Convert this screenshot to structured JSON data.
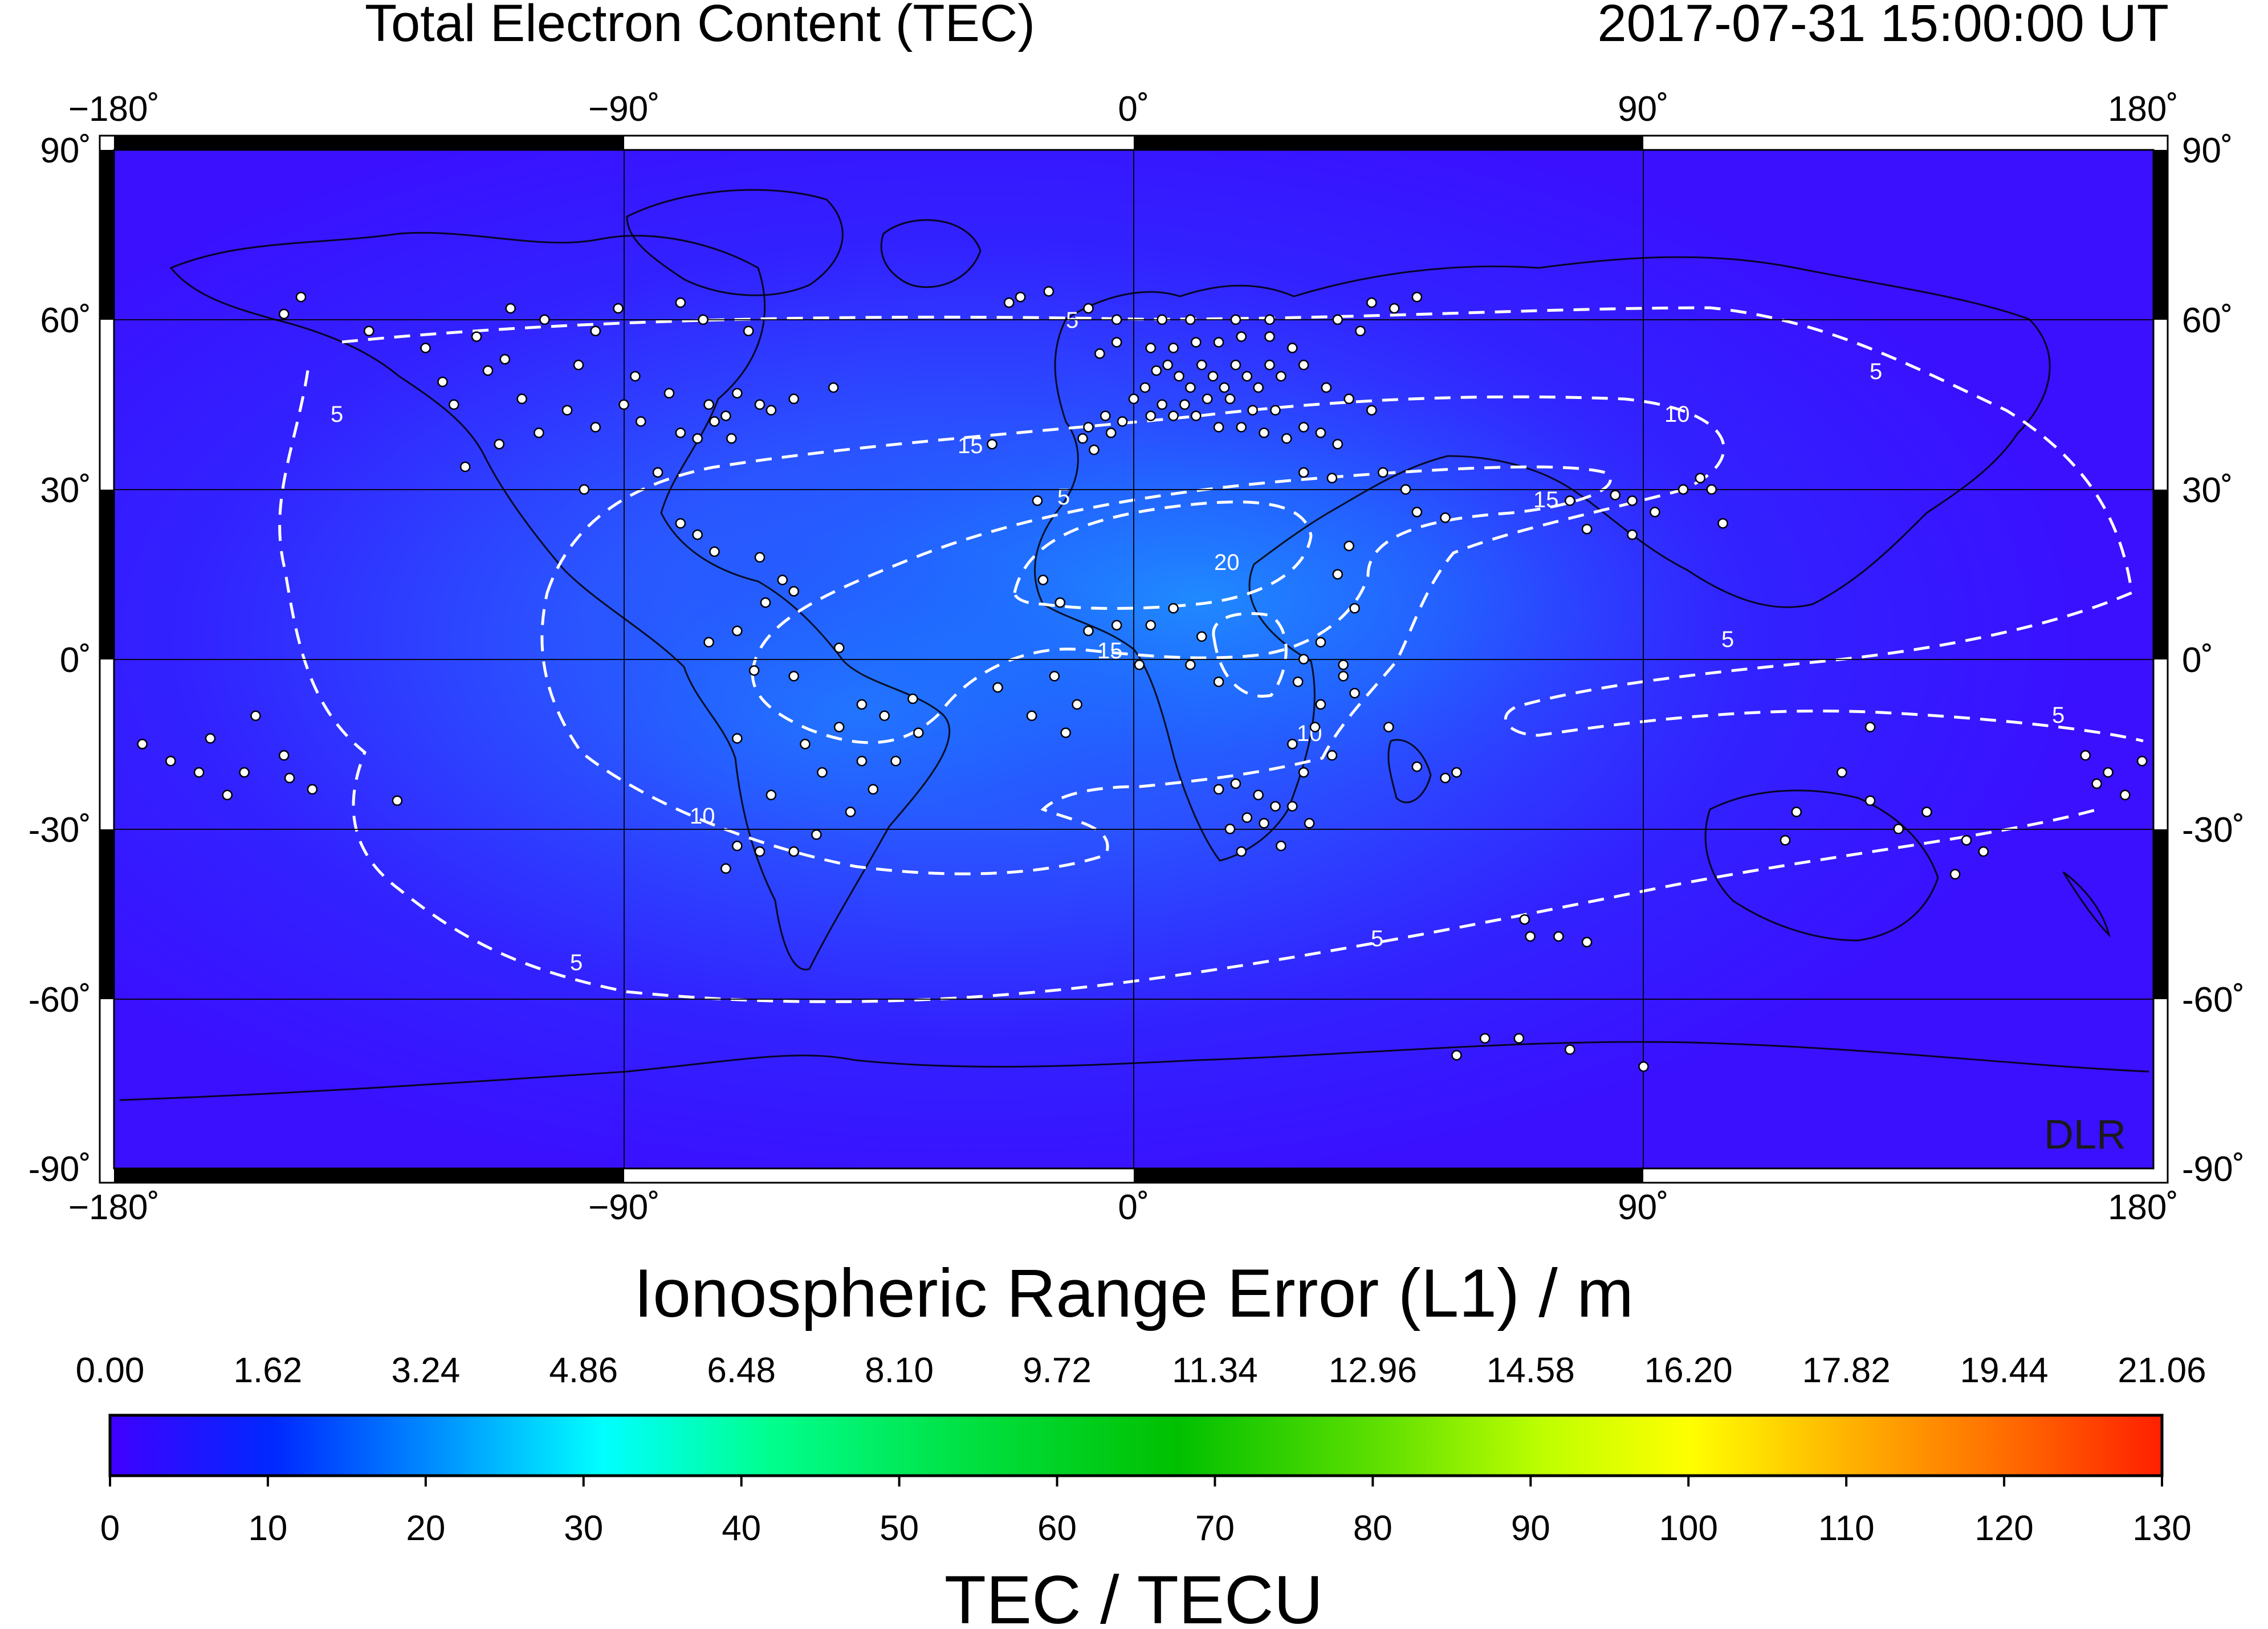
{
  "header": {
    "title": "Total Electron Content (TEC)",
    "timestamp": "2017-07-31  15:00:00 UT"
  },
  "map": {
    "lon_ticks": [
      "−180˚",
      "−90˚",
      "0˚",
      "90˚",
      "180˚"
    ],
    "lat_ticks": [
      "90˚",
      "60˚",
      "30˚",
      "0˚",
      "-30˚",
      "-60˚",
      "-90˚"
    ],
    "watermark": "DLR",
    "contour_labels": [
      "5",
      "10",
      "15",
      "20"
    ]
  },
  "colorbar": {
    "top_title": "Ionospheric Range Error (L1) / m",
    "top_ticks": [
      "0.00",
      "1.62",
      "3.24",
      "4.86",
      "6.48",
      "8.10",
      "9.72",
      "11.34",
      "12.96",
      "14.58",
      "16.20",
      "17.82",
      "19.44",
      "21.06"
    ],
    "bottom_ticks": [
      "0",
      "10",
      "20",
      "30",
      "40",
      "50",
      "60",
      "70",
      "80",
      "90",
      "100",
      "110",
      "120",
      "130"
    ],
    "bottom_title": "TEC / TECU",
    "colors": [
      "#3a00ff",
      "#0050ff",
      "#00ffff",
      "#00ff40",
      "#00cc00",
      "#ffff00",
      "#ff8000",
      "#ff2000"
    ]
  },
  "stations": [
    [
      -150,
      61
    ],
    [
      -147,
      64
    ],
    [
      -135,
      58
    ],
    [
      -122,
      49
    ],
    [
      -120,
      45
    ],
    [
      -118,
      34
    ],
    [
      -114,
      51
    ],
    [
      -111,
      53
    ],
    [
      -105,
      40
    ],
    [
      -100,
      44
    ],
    [
      -97,
      30
    ],
    [
      -95,
      41
    ],
    [
      -90,
      45
    ],
    [
      -87,
      42
    ],
    [
      -84,
      33
    ],
    [
      -80,
      40
    ],
    [
      -77,
      39
    ],
    [
      -75,
      45
    ],
    [
      -72,
      43
    ],
    [
      -70,
      47
    ],
    [
      -66,
      45
    ],
    [
      -60,
      46
    ],
    [
      -53,
      48
    ],
    [
      -104,
      60
    ],
    [
      -95,
      58
    ],
    [
      -80,
      63
    ],
    [
      -68,
      58
    ],
    [
      -110,
      62
    ],
    [
      -125,
      55
    ],
    [
      -88,
      50
    ],
    [
      -108,
      46
    ],
    [
      -98,
      52
    ],
    [
      -82,
      47
    ],
    [
      -74,
      42
    ],
    [
      -71,
      39
    ],
    [
      -112,
      38
    ],
    [
      -116,
      57
    ],
    [
      -64,
      44
    ],
    [
      -76,
      60
    ],
    [
      -91,
      62
    ],
    [
      -80,
      24
    ],
    [
      -77,
      22
    ],
    [
      -74,
      19
    ],
    [
      -66,
      18
    ],
    [
      -62,
      14
    ],
    [
      -60,
      12
    ],
    [
      -65,
      10
    ],
    [
      -70,
      5
    ],
    [
      -75,
      3
    ],
    [
      -67,
      -2
    ],
    [
      -60,
      -3
    ],
    [
      -52,
      2
    ],
    [
      -48,
      -8
    ],
    [
      -44,
      -10
    ],
    [
      -46,
      -23
    ],
    [
      -50,
      -27
    ],
    [
      -56,
      -31
    ],
    [
      -60,
      -34
    ],
    [
      -66,
      -34
    ],
    [
      -70,
      -33
    ],
    [
      -72,
      -37
    ],
    [
      -64,
      -24
    ],
    [
      -58,
      -15
    ],
    [
      -55,
      -20
    ],
    [
      -39,
      -7
    ],
    [
      -42,
      -18
    ],
    [
      -38,
      -13
    ],
    [
      -52,
      -12
    ],
    [
      -48,
      -18
    ],
    [
      -70,
      -14
    ],
    [
      -20,
      64
    ],
    [
      -15,
      65
    ],
    [
      -22,
      63
    ],
    [
      -8,
      62
    ],
    [
      -3,
      60
    ],
    [
      -17,
      28
    ],
    [
      -25,
      38
    ],
    [
      -9,
      39
    ],
    [
      -7,
      37
    ],
    [
      -4,
      40
    ],
    [
      -16,
      14
    ],
    [
      -13,
      10
    ],
    [
      -8,
      5
    ],
    [
      -3,
      6
    ],
    [
      1,
      -1
    ],
    [
      -24,
      -5
    ],
    [
      -18,
      -10
    ],
    [
      -10,
      -8
    ],
    [
      -12,
      -13
    ],
    [
      -14,
      -3
    ],
    [
      2,
      48
    ],
    [
      4,
      51
    ],
    [
      6,
      52
    ],
    [
      8,
      50
    ],
    [
      10,
      48
    ],
    [
      12,
      52
    ],
    [
      14,
      50
    ],
    [
      16,
      48
    ],
    [
      18,
      52
    ],
    [
      20,
      50
    ],
    [
      22,
      48
    ],
    [
      24,
      52
    ],
    [
      26,
      50
    ],
    [
      5,
      45
    ],
    [
      9,
      45
    ],
    [
      13,
      46
    ],
    [
      17,
      46
    ],
    [
      21,
      44
    ],
    [
      25,
      44
    ],
    [
      3,
      43
    ],
    [
      7,
      43
    ],
    [
      11,
      43
    ],
    [
      15,
      41
    ],
    [
      19,
      41
    ],
    [
      23,
      40
    ],
    [
      27,
      39
    ],
    [
      30,
      41
    ],
    [
      33,
      40
    ],
    [
      36,
      38
    ],
    [
      -2,
      42
    ],
    [
      -5,
      43
    ],
    [
      -8,
      41
    ],
    [
      0,
      46
    ],
    [
      3,
      55
    ],
    [
      7,
      55
    ],
    [
      11,
      56
    ],
    [
      15,
      56
    ],
    [
      19,
      57
    ],
    [
      24,
      57
    ],
    [
      28,
      55
    ],
    [
      18,
      60
    ],
    [
      24,
      60
    ],
    [
      10,
      60
    ],
    [
      5,
      60
    ],
    [
      -3,
      56
    ],
    [
      -6,
      54
    ],
    [
      30,
      52
    ],
    [
      34,
      48
    ],
    [
      38,
      46
    ],
    [
      42,
      44
    ],
    [
      30,
      33
    ],
    [
      35,
      32
    ],
    [
      44,
      33
    ],
    [
      48,
      30
    ],
    [
      50,
      26
    ],
    [
      55,
      25
    ],
    [
      36,
      15
    ],
    [
      39,
      9
    ],
    [
      37,
      -1
    ],
    [
      39,
      -6
    ],
    [
      33,
      -8
    ],
    [
      29,
      -4
    ],
    [
      30,
      0
    ],
    [
      33,
      3
    ],
    [
      37,
      -3
    ],
    [
      32,
      -12
    ],
    [
      35,
      -17
    ],
    [
      28,
      -15
    ],
    [
      30,
      -20
    ],
    [
      22,
      -24
    ],
    [
      18,
      -22
    ],
    [
      25,
      -26
    ],
    [
      28,
      -26
    ],
    [
      31,
      -29
    ],
    [
      26,
      -33
    ],
    [
      19,
      -34
    ],
    [
      15,
      -23
    ],
    [
      20,
      -28
    ],
    [
      23,
      -29
    ],
    [
      17,
      -30
    ],
    [
      3,
      6
    ],
    [
      7,
      9
    ],
    [
      12,
      4
    ],
    [
      15,
      -4
    ],
    [
      10,
      -1
    ],
    [
      38,
      20
    ],
    [
      57,
      -20
    ],
    [
      55,
      -21
    ],
    [
      50,
      -19
    ],
    [
      45,
      -12
    ],
    [
      77,
      28
    ],
    [
      80,
      23
    ],
    [
      85,
      29
    ],
    [
      88,
      22
    ],
    [
      92,
      26
    ],
    [
      97,
      30
    ],
    [
      100,
      32
    ],
    [
      102,
      30
    ],
    [
      88,
      28
    ],
    [
      104,
      24
    ],
    [
      115,
      -32
    ],
    [
      117,
      -27
    ],
    [
      125,
      -20
    ],
    [
      130,
      -25
    ],
    [
      135,
      -30
    ],
    [
      140,
      -27
    ],
    [
      147,
      -32
    ],
    [
      150,
      -34
    ],
    [
      130,
      -12
    ],
    [
      145,
      -38
    ],
    [
      168,
      -17
    ],
    [
      170,
      -22
    ],
    [
      172,
      -20
    ],
    [
      175,
      -24
    ],
    [
      178,
      -18
    ],
    [
      70,
      -49
    ],
    [
      75,
      -49
    ],
    [
      80,
      -50
    ],
    [
      69,
      -46
    ],
    [
      62,
      -67
    ],
    [
      68,
      -67
    ],
    [
      77,
      -69
    ],
    [
      90,
      -72
    ],
    [
      57,
      -70
    ],
    [
      -170,
      -18
    ],
    [
      -165,
      -20
    ],
    [
      -160,
      -24
    ],
    [
      -157,
      -20
    ],
    [
      -150,
      -17
    ],
    [
      -145,
      -23
    ],
    [
      -175,
      -15
    ],
    [
      -163,
      -14
    ],
    [
      -130,
      -25
    ],
    [
      -155,
      -10
    ],
    [
      -149,
      -21
    ],
    [
      42,
      63
    ],
    [
      46,
      62
    ],
    [
      50,
      64
    ],
    [
      36,
      60
    ],
    [
      40,
      58
    ]
  ]
}
